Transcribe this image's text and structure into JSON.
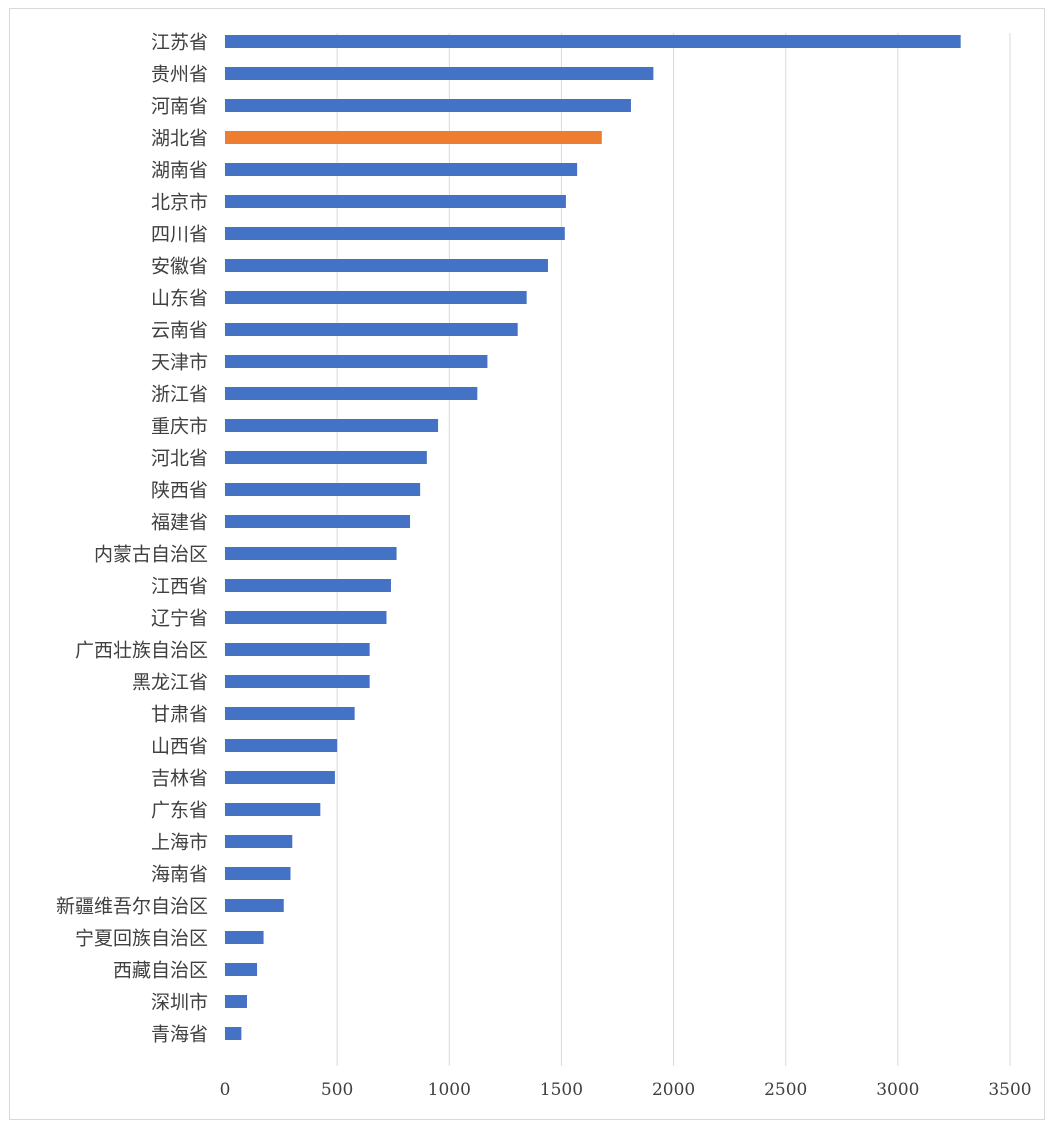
{
  "chart_data": {
    "type": "bar",
    "orientation": "horizontal",
    "categories": [
      "江苏省",
      "贵州省",
      "河南省",
      "湖北省",
      "湖南省",
      "北京市",
      "四川省",
      "安徽省",
      "山东省",
      "云南省",
      "天津市",
      "浙江省",
      "重庆市",
      "河北省",
      "陕西省",
      "福建省",
      "内蒙古自治区",
      "江西省",
      "辽宁省",
      "广西壮族自治区",
      "黑龙江省",
      "甘肃省",
      "山西省",
      "吉林省",
      "广东省",
      "上海市",
      "海南省",
      "新疆维吾尔自治区",
      "宁夏回族自治区",
      "西藏自治区",
      "深圳市",
      "青海省"
    ],
    "values": [
      3280,
      1910,
      1810,
      1680,
      1570,
      1520,
      1515,
      1440,
      1345,
      1305,
      1170,
      1125,
      950,
      900,
      870,
      825,
      765,
      740,
      720,
      645,
      645,
      578,
      500,
      490,
      425,
      300,
      292,
      262,
      172,
      143,
      98,
      73
    ],
    "highlight_category": "湖北省",
    "colors": {
      "bar": "#4472C4",
      "highlight": "#ED7D31",
      "grid": "#D9D9D9",
      "text": "#404040"
    },
    "x_ticks": [
      "0",
      "500",
      "1000",
      "1500",
      "2000",
      "2500",
      "3000",
      "3500"
    ],
    "xlim": [
      0,
      3500
    ],
    "grid": true,
    "legend": "none",
    "title": "",
    "xlabel": "",
    "ylabel": ""
  }
}
